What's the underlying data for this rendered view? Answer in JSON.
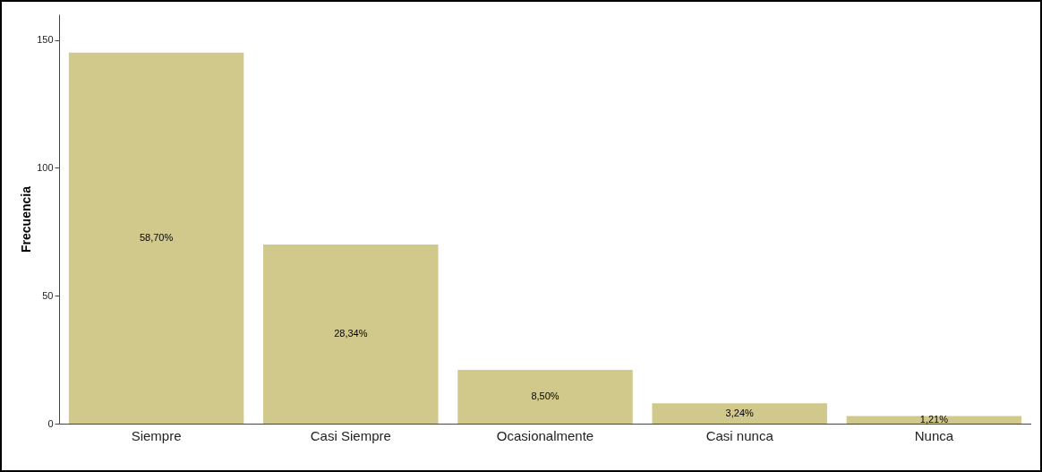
{
  "chart_data": {
    "type": "bar",
    "ylabel": "Frecuencia",
    "categories": [
      "Siempre",
      "Casi Siempre",
      "Ocasionalmente",
      "Casi nunca",
      "Nunca"
    ],
    "values": [
      145,
      70,
      21,
      8,
      3
    ],
    "annotations": [
      "58,70%",
      "28,34%",
      "8,50%",
      "3,24%",
      "1,21%"
    ],
    "color": "#d0c98b",
    "ylim": [
      0,
      160
    ],
    "yticks": [
      0,
      50,
      100,
      150
    ],
    "grid": false
  }
}
